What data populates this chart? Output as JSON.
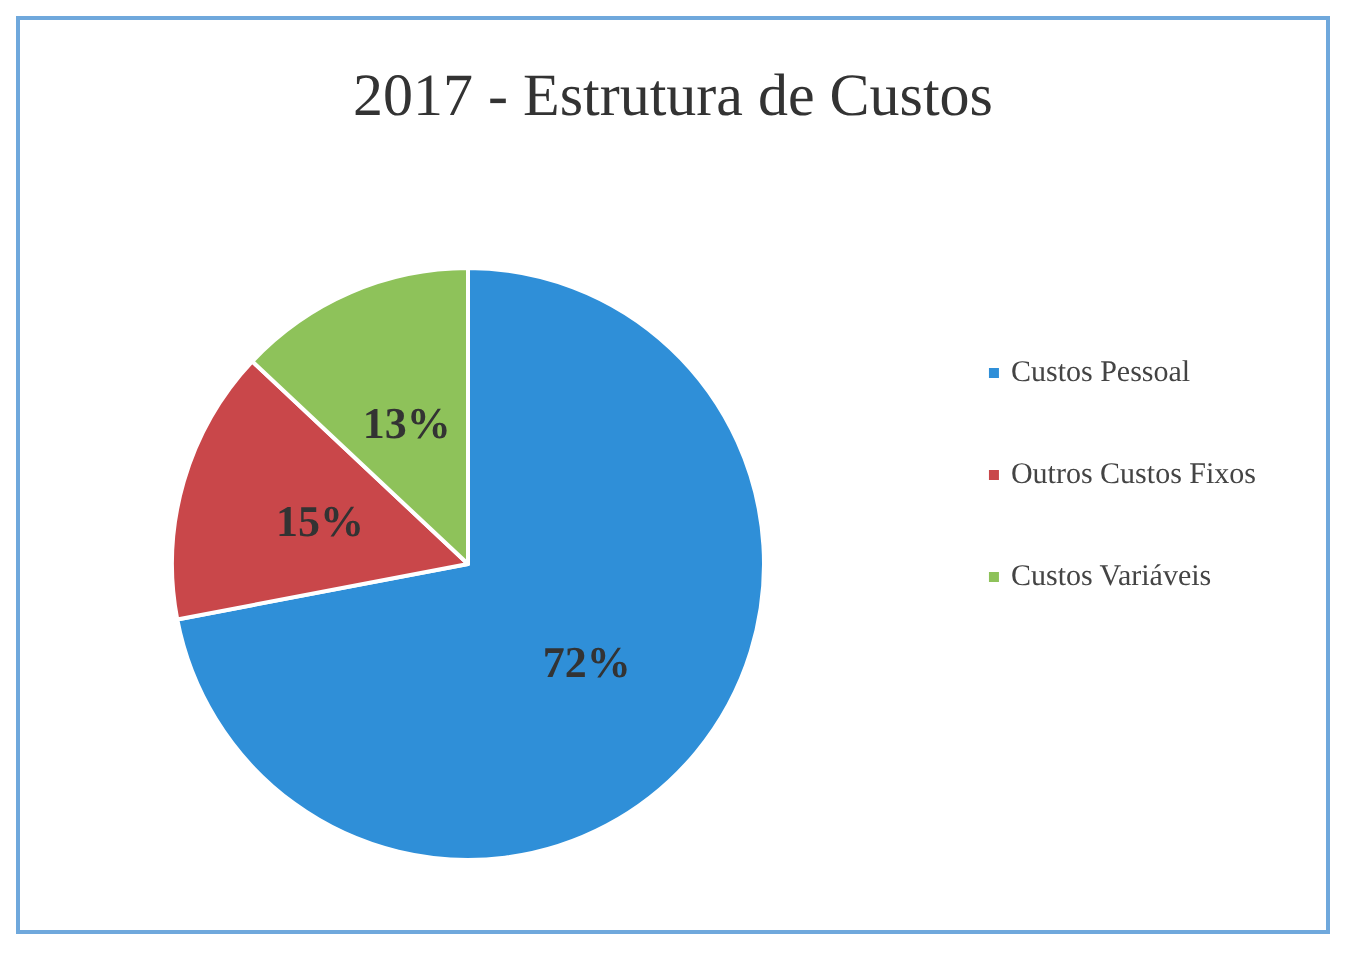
{
  "chart_data": {
    "type": "pie",
    "title": "2017 - Estrutura de Custos",
    "categories": [
      "Custos Pessoal",
      "Outros Custos Fixos",
      "Custos Variáveis"
    ],
    "values": [
      72,
      15,
      13
    ],
    "colors": [
      "#2f8fd8",
      "#c9474a",
      "#8ec25a"
    ],
    "value_labels": [
      "72%",
      "15%",
      "13%"
    ],
    "legend": "right"
  }
}
